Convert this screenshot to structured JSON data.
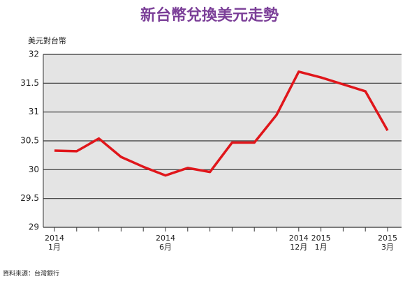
{
  "chart_data": {
    "type": "line",
    "title": "新台幣兌換美元走勢",
    "y_label": "美元對台幣",
    "source": "資料來源：台灣銀行",
    "categories": [
      "2014\n1月",
      null,
      null,
      null,
      null,
      "2014\n6月",
      null,
      null,
      null,
      null,
      null,
      "2014\n12月",
      "2015\n1月",
      null,
      null,
      "2015\n3月"
    ],
    "series": [
      {
        "name": "美元對台幣",
        "color": "#e0161b",
        "values": [
          30.33,
          30.32,
          30.54,
          30.22,
          30.05,
          29.9,
          30.03,
          29.96,
          30.47,
          30.47,
          30.95,
          31.7,
          31.6,
          31.48,
          31.36,
          30.68
        ]
      }
    ],
    "ylim": [
      29,
      32
    ],
    "yticks": [
      29,
      29.5,
      30,
      30.5,
      31,
      31.5,
      32
    ],
    "grid": true
  }
}
